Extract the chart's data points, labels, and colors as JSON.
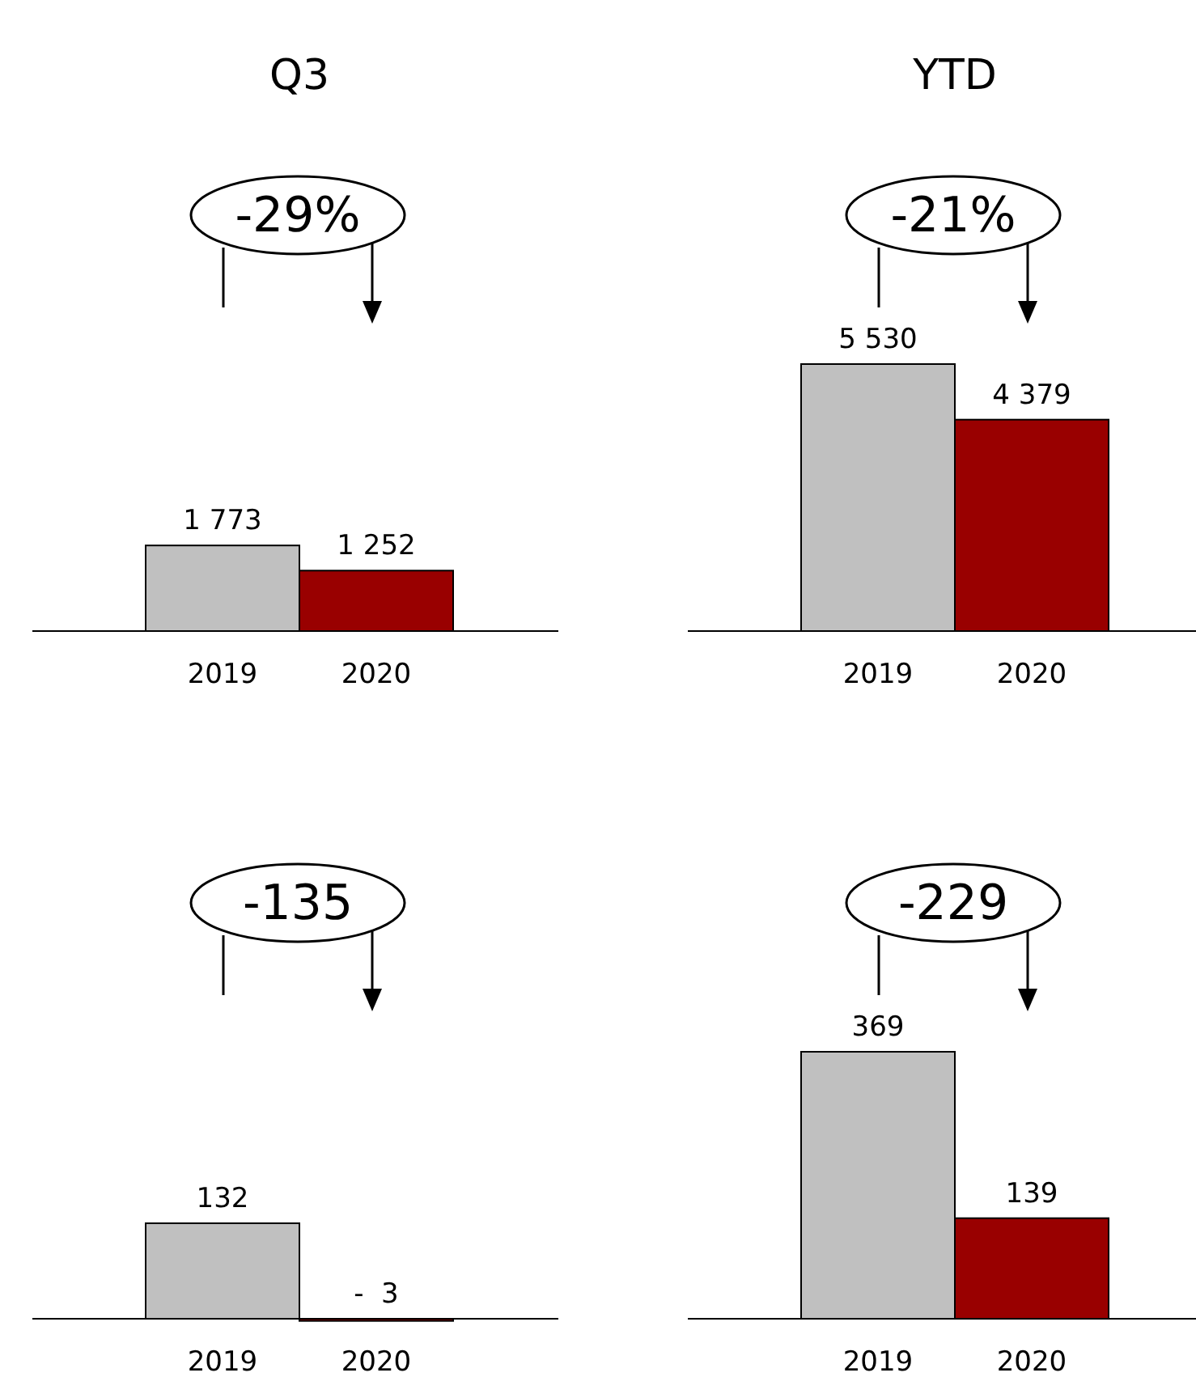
{
  "chart_data": [
    {
      "type": "bar",
      "title": "Q3",
      "categories": [
        "2019",
        "2020"
      ],
      "values": [
        1773,
        1252
      ],
      "value_labels": [
        "1 773",
        "1 252"
      ],
      "colors": [
        "#c0c0c0",
        "#990000"
      ],
      "tick_labels": "x",
      "annotations": [
        "-29%"
      ]
    },
    {
      "type": "bar",
      "title": "YTD",
      "categories": [
        "2019",
        "2020"
      ],
      "values": [
        5530,
        4379
      ],
      "value_labels": [
        "5 530",
        "4 379"
      ],
      "colors": [
        "#c0c0c0",
        "#990000"
      ],
      "tick_labels": "x",
      "annotations": [
        "-21%"
      ]
    },
    {
      "type": "bar",
      "categories": [
        "2019",
        "2020"
      ],
      "values": [
        132,
        -3
      ],
      "value_labels": [
        "132",
        "-  3"
      ],
      "colors": [
        "#c0c0c0",
        "#990000"
      ],
      "tick_labels": "x",
      "annotations": [
        "-135"
      ]
    },
    {
      "type": "bar",
      "categories": [
        "2019",
        "2020"
      ],
      "values": [
        369,
        139
      ],
      "value_labels": [
        "369",
        "139"
      ],
      "colors": [
        "#c0c0c0",
        "#990000"
      ],
      "tick_labels": "x",
      "annotations": [
        "-229"
      ]
    }
  ]
}
